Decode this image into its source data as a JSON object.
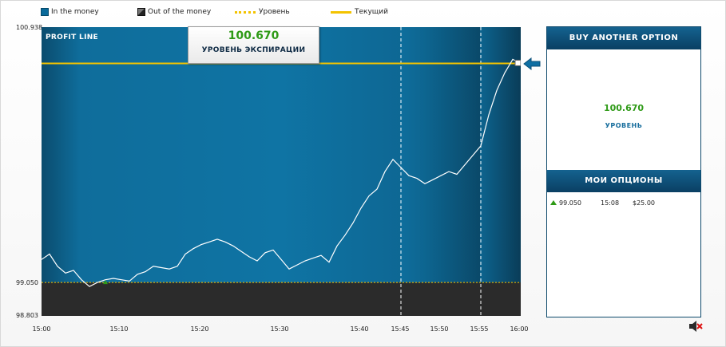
{
  "legend": {
    "in_money": "In the money",
    "out_money": "Out of the money",
    "level": "Уровень",
    "current": "Текущий",
    "colors": {
      "in": "#0a6a9a",
      "out": "#2b2b2b",
      "level": "#f3c300"
    }
  },
  "chart": {
    "title": "PROFIT LINE",
    "y_labels": [
      "100.938",
      "99.050",
      "98.803"
    ],
    "x_labels": [
      "15:00",
      "15:10",
      "15:20",
      "15:30",
      "15:40",
      "15:45",
      "15:50",
      "15:55",
      "16:00"
    ]
  },
  "expiry": {
    "value": "100.670",
    "label": "УРОВЕНЬ ЭКСПИРАЦИИ"
  },
  "panel": {
    "buy_button": "BUY ANOTHER OPTION",
    "level_value": "100.670",
    "level_label": "УРОВЕНЬ",
    "options_header": "МОИ ОПЦИОНЫ",
    "options": [
      {
        "direction": "up",
        "level": "99.050",
        "time": "15:08",
        "amount": "$25.00"
      }
    ]
  },
  "chart_data": {
    "type": "line",
    "title": "PROFIT LINE",
    "xlabel": "",
    "ylabel": "",
    "x_ticks": [
      "15:00",
      "15:10",
      "15:20",
      "15:30",
      "15:40",
      "15:45",
      "15:50",
      "15:55",
      "16:00"
    ],
    "ylim": [
      98.803,
      100.938
    ],
    "y_ticks": [
      98.803,
      99.05,
      100.938
    ],
    "strike_level": 99.05,
    "expiry_level": 100.67,
    "vertical_markers": [
      "15:45",
      "15:55"
    ],
    "series": [
      {
        "x": [
          "15:00",
          "15:01",
          "15:02",
          "15:03",
          "15:04",
          "15:05",
          "15:06",
          "15:07",
          "15:08",
          "15:09",
          "15:10",
          "15:11",
          "15:12",
          "15:13",
          "15:14",
          "15:15",
          "15:16",
          "15:17",
          "15:18",
          "15:19",
          "15:20",
          "15:21",
          "15:22",
          "15:23",
          "15:24",
          "15:25",
          "15:26",
          "15:27",
          "15:28",
          "15:29",
          "15:30",
          "15:31",
          "15:32",
          "15:33",
          "15:34",
          "15:35",
          "15:36",
          "15:37",
          "15:38",
          "15:39",
          "15:40",
          "15:41",
          "15:42",
          "15:43",
          "15:44",
          "15:45",
          "15:46",
          "15:47",
          "15:48",
          "15:49",
          "15:50",
          "15:51",
          "15:52",
          "15:53",
          "15:54",
          "15:55",
          "15:56",
          "15:57",
          "15:58",
          "15:59",
          "16:00"
        ],
        "y": [
          99.22,
          99.26,
          99.17,
          99.12,
          99.14,
          99.07,
          99.02,
          99.05,
          99.07,
          99.08,
          99.07,
          99.06,
          99.11,
          99.13,
          99.17,
          99.16,
          99.15,
          99.17,
          99.26,
          99.3,
          99.33,
          99.35,
          99.37,
          99.35,
          99.32,
          99.28,
          99.24,
          99.21,
          99.27,
          99.29,
          99.22,
          99.15,
          99.18,
          99.21,
          99.23,
          99.25,
          99.2,
          99.32,
          99.4,
          99.49,
          99.6,
          99.69,
          99.74,
          99.87,
          99.96,
          99.9,
          99.84,
          99.82,
          99.78,
          99.81,
          99.84,
          99.87,
          99.85,
          99.92,
          99.99,
          100.06,
          100.29,
          100.47,
          100.6,
          100.7,
          100.67
        ]
      }
    ]
  }
}
